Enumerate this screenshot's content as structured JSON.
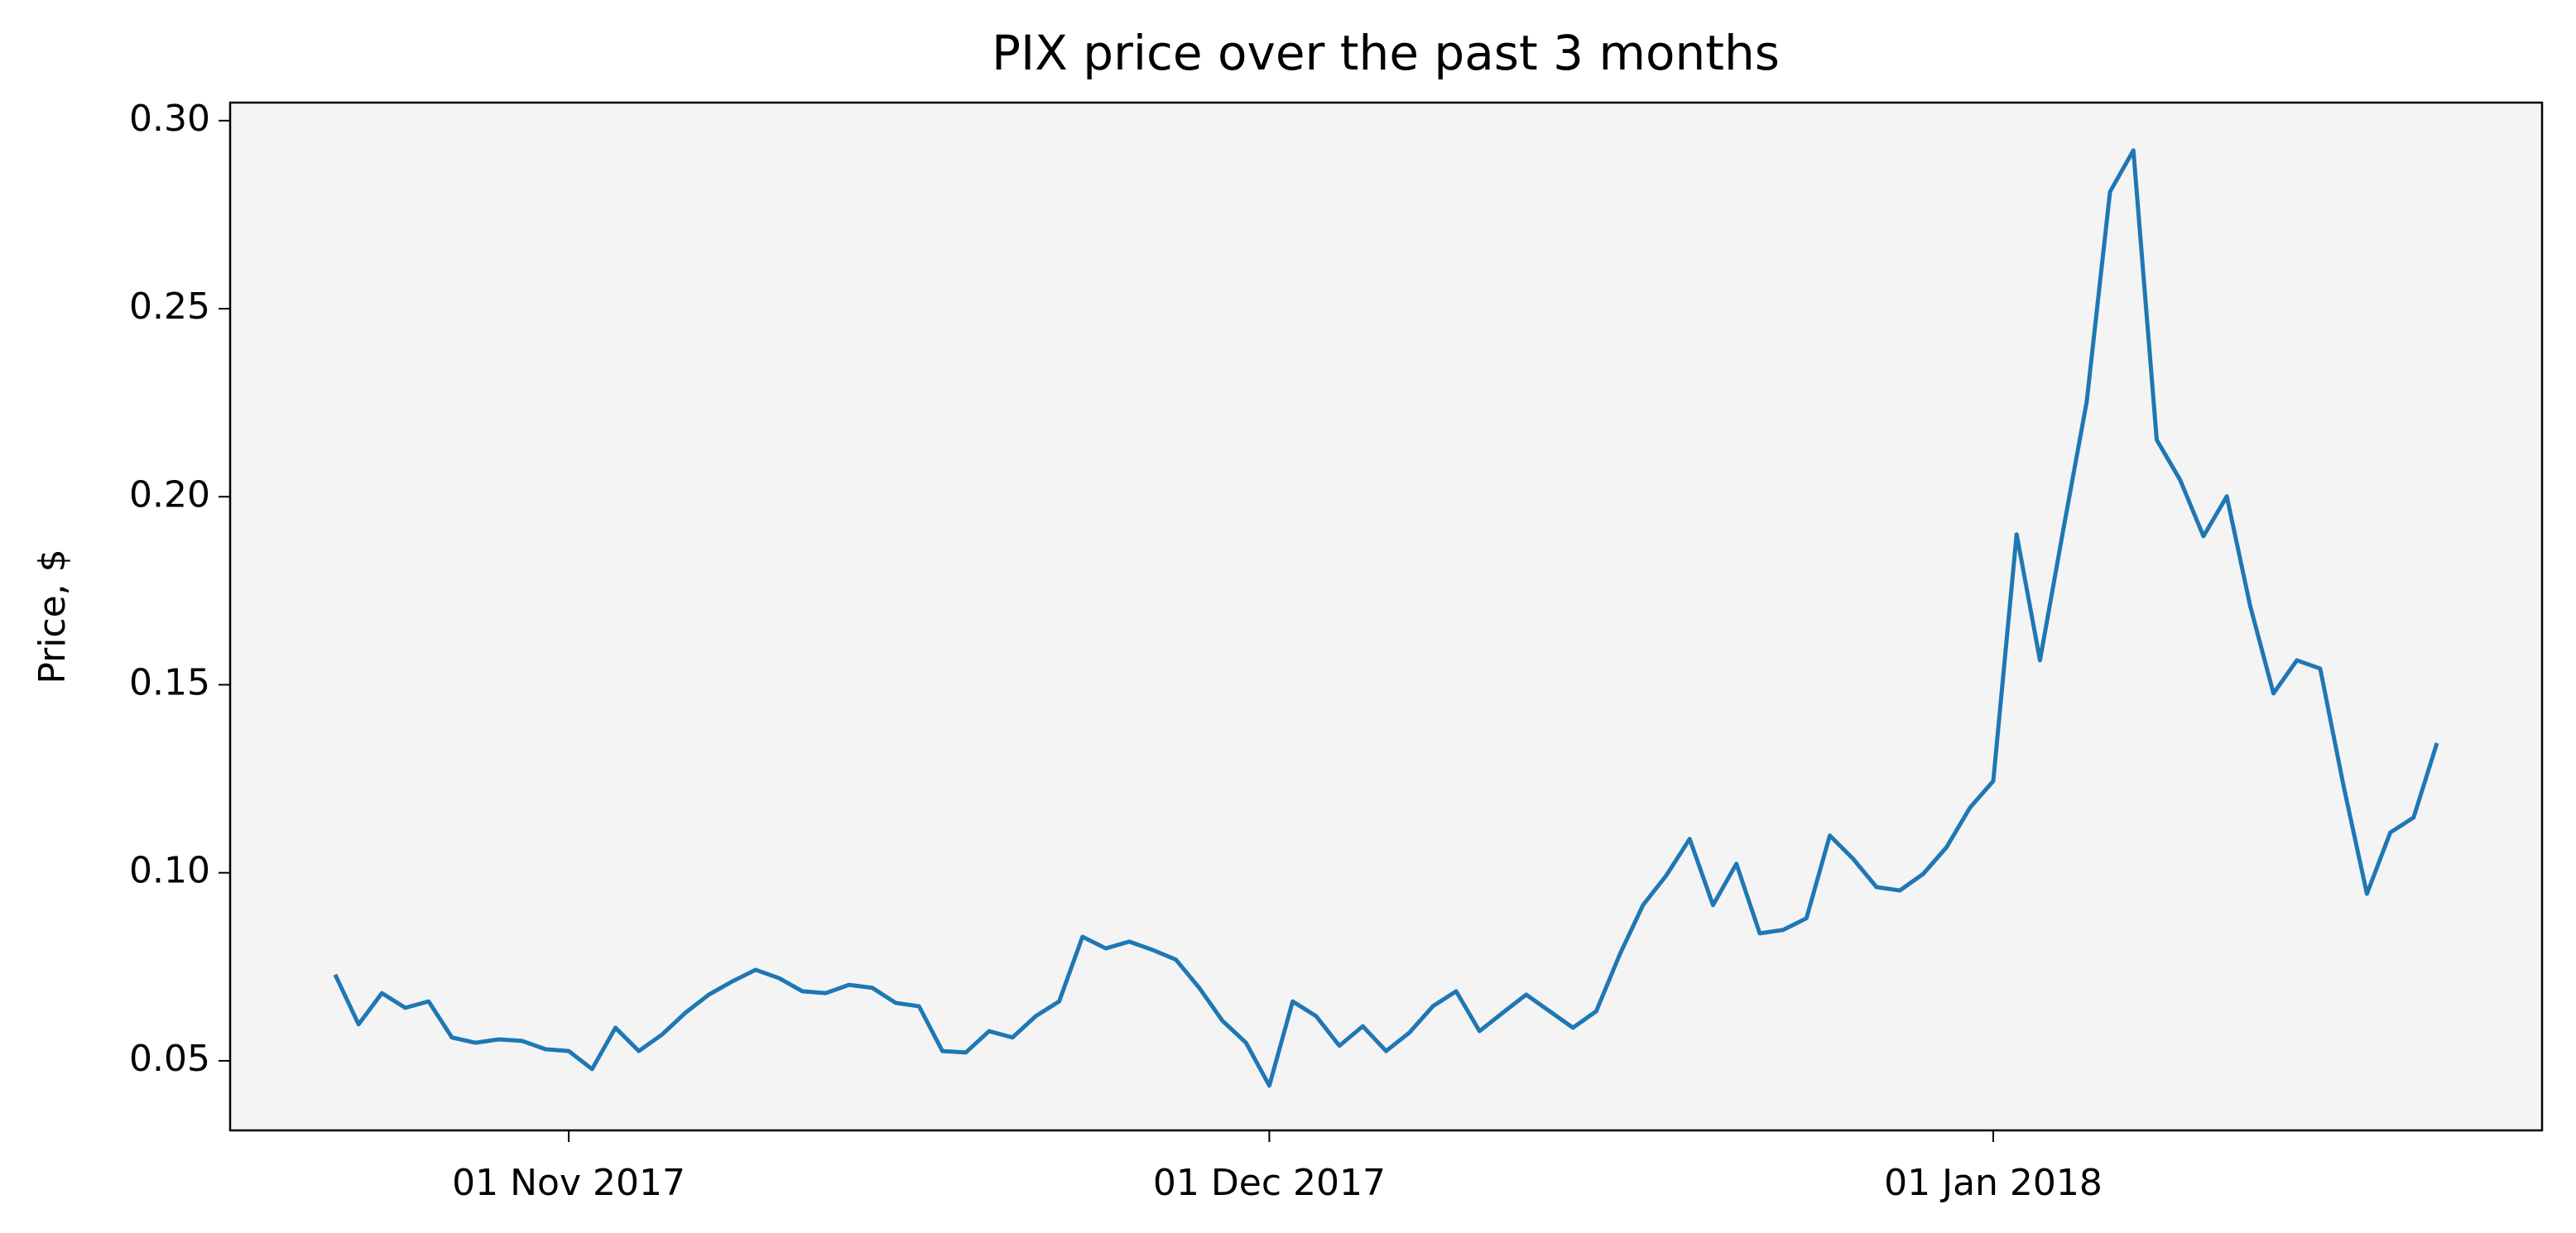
{
  "chart_data": {
    "type": "line",
    "title": "PIX price over the past 3 months",
    "y_label": "Price, $",
    "x": [
      "2017-10-22",
      "2017-10-23",
      "2017-10-24",
      "2017-10-25",
      "2017-10-26",
      "2017-10-27",
      "2017-10-28",
      "2017-10-29",
      "2017-10-30",
      "2017-10-31",
      "2017-11-01",
      "2017-11-02",
      "2017-11-03",
      "2017-11-04",
      "2017-11-05",
      "2017-11-06",
      "2017-11-07",
      "2017-11-08",
      "2017-11-09",
      "2017-11-10",
      "2017-11-11",
      "2017-11-12",
      "2017-11-13",
      "2017-11-14",
      "2017-11-15",
      "2017-11-16",
      "2017-11-17",
      "2017-11-18",
      "2017-11-19",
      "2017-11-20",
      "2017-11-21",
      "2017-11-22",
      "2017-11-23",
      "2017-11-24",
      "2017-11-25",
      "2017-11-26",
      "2017-11-27",
      "2017-11-28",
      "2017-11-29",
      "2017-11-30",
      "2017-12-01",
      "2017-12-02",
      "2017-12-03",
      "2017-12-04",
      "2017-12-05",
      "2017-12-06",
      "2017-12-07",
      "2017-12-08",
      "2017-12-09",
      "2017-12-10",
      "2017-12-11",
      "2017-12-12",
      "2017-12-13",
      "2017-12-14",
      "2017-12-15",
      "2017-12-16",
      "2017-12-17",
      "2017-12-18",
      "2017-12-19",
      "2017-12-20",
      "2017-12-21",
      "2017-12-22",
      "2017-12-23",
      "2017-12-24",
      "2017-12-25",
      "2017-12-26",
      "2017-12-27",
      "2017-12-28",
      "2017-12-29",
      "2017-12-30",
      "2017-12-31",
      "2018-01-01",
      "2018-01-02",
      "2018-01-03",
      "2018-01-04",
      "2018-01-05",
      "2018-01-06",
      "2018-01-07",
      "2018-01-08",
      "2018-01-09",
      "2018-01-10",
      "2018-01-11",
      "2018-01-12",
      "2018-01-13",
      "2018-01-14",
      "2018-01-15",
      "2018-01-16",
      "2018-01-17",
      "2018-01-18",
      "2018-01-19",
      "2018-01-20"
    ],
    "values": [
      0.0729,
      0.0597,
      0.068,
      0.0641,
      0.0658,
      0.0562,
      0.0548,
      0.0557,
      0.0553,
      0.0531,
      0.0526,
      0.0478,
      0.0588,
      0.0526,
      0.057,
      0.0628,
      0.0676,
      0.0711,
      0.0742,
      0.072,
      0.0685,
      0.068,
      0.0702,
      0.0694,
      0.0654,
      0.0645,
      0.0526,
      0.0522,
      0.0579,
      0.0562,
      0.0619,
      0.0658,
      0.083,
      0.0799,
      0.0817,
      0.0795,
      0.0769,
      0.0694,
      0.0606,
      0.0548,
      0.0434,
      0.0658,
      0.0619,
      0.054,
      0.0592,
      0.0526,
      0.0575,
      0.0645,
      0.0685,
      0.0579,
      0.0628,
      0.0676,
      0.0632,
      0.0588,
      0.0632,
      0.0782,
      0.0914,
      0.0993,
      0.109,
      0.0914,
      0.1024,
      0.0839,
      0.0848,
      0.0879,
      0.1099,
      0.1037,
      0.0962,
      0.0953,
      0.0997,
      0.1068,
      0.1173,
      0.1244,
      0.19,
      0.1565,
      0.1913,
      0.2252,
      0.2811,
      0.2921,
      0.2151,
      0.2045,
      0.1895,
      0.2001,
      0.171,
      0.1477,
      0.1565,
      0.1543,
      0.1231,
      0.0944,
      0.1107,
      0.1147,
      0.1345
    ],
    "color": "#1f77b4",
    "xlim": [
      "2017-10-17T12:00:00Z",
      "2018-01-24T12:00:00Z"
    ],
    "xticks": [
      {
        "value": "2017-11-01",
        "label": "01 Nov 2017"
      },
      {
        "value": "2017-12-01",
        "label": "01 Dec 2017"
      },
      {
        "value": "2018-01-01",
        "label": "01 Jan 2018"
      }
    ],
    "ylim": [
      0.0315,
      0.3048
    ],
    "yticks": [
      {
        "value": 0.05,
        "label": "0.05"
      },
      {
        "value": 0.1,
        "label": "0.10"
      },
      {
        "value": 0.15,
        "label": "0.15"
      },
      {
        "value": 0.2,
        "label": "0.20"
      },
      {
        "value": 0.25,
        "label": "0.25"
      },
      {
        "value": 0.3,
        "label": "0.30"
      }
    ],
    "background": "#f4f4f4"
  }
}
